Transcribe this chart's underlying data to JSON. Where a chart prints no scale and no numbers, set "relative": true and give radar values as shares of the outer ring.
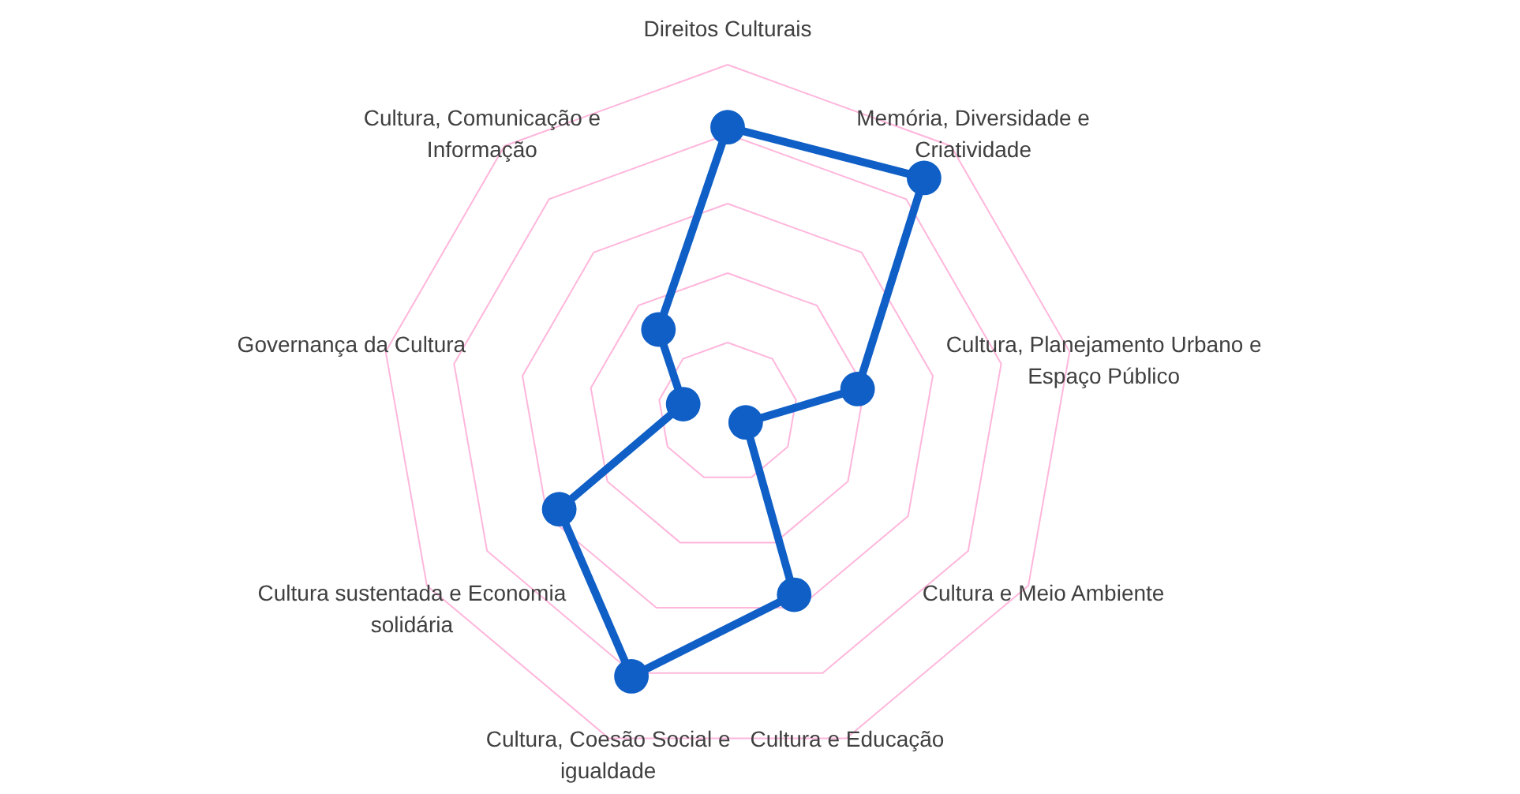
{
  "chart_data": {
    "type": "radar",
    "relative": true,
    "grid": true,
    "marker": "circle",
    "line_style": "solid",
    "categories": [
      "Direitos Culturais",
      "Memória, Diversidade e Criatividade",
      "Cultura, Planejamento Urbano e Espaço Público",
      "Cultura e Meio Ambiente",
      "Cultura  e Educação",
      "Cultura,  Coesão Social e igualdade",
      "Cultura sustentada e Economia solidária",
      "Governança da Cultura",
      "Cultura, Comunicação e Informação"
    ],
    "series": [
      {
        "color": "#0f5fc6",
        "values": [
          0.82,
          0.88,
          0.38,
          0.06,
          0.56,
          0.81,
          0.56,
          0.13,
          0.31
        ]
      }
    ]
  }
}
